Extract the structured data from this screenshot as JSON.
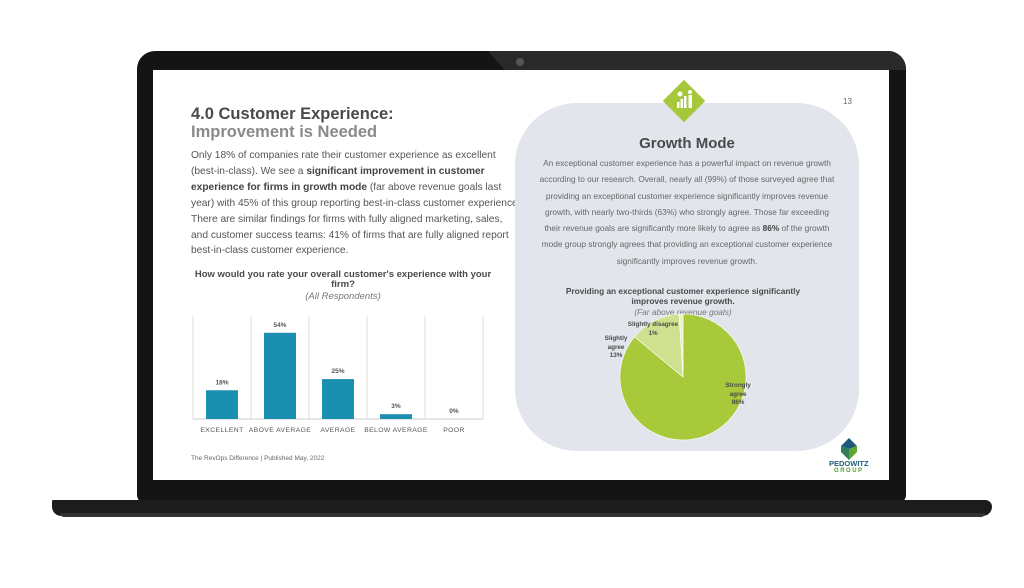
{
  "page": {
    "number": "13",
    "heading_line1": "4.0 Customer Experience:",
    "heading_line2": "Improvement is Needed",
    "body": [
      {
        "text": "Only 18% of companies rate their customer experience as excellent (best-in-class). We see a ",
        "bold": false
      },
      {
        "text": "significant improvement in customer experience for firms in growth mode",
        "bold": true
      },
      {
        "text": " (far above revenue goals last year) with 45% of this group reporting best-in-class customer experience. There are similar findings for firms with fully aligned marketing, sales, and customer success teams: 41% of firms that are fully aligned report best-in-class customer experience.",
        "bold": false
      }
    ],
    "footer": "The RevOps Difference  |  Published May, 2022"
  },
  "growth_box": {
    "icon": "growth-presenter-chart-icon",
    "title": "Growth Mode",
    "text_before": "An exceptional customer experience has a powerful impact on revenue growth according to our research. Overall, nearly all (99%) of those surveyed agree that providing an exceptional customer experience significantly improves revenue growth, with nearly two-thirds (63%) who strongly agree. Those far exceeding their revenue goals are significantly more likely to agree as ",
    "text_bold": "86%",
    "text_after": " of the growth mode group strongly agrees that providing an exceptional customer experience significantly improves revenue growth."
  },
  "logo": {
    "name": "PEDOWITZ",
    "sub": "GROUP"
  },
  "colors": {
    "bar": "#1a8fb0",
    "accent_green": "#a4c83a",
    "pie_main": "#a8c93a",
    "pie_light": "#cfe08f",
    "pie_lightest": "#eaf2c8",
    "box_bg": "#e2e5ec"
  },
  "chart_data": [
    {
      "type": "bar",
      "title": "How would you rate your overall customer's experience with your firm?",
      "subtitle": "(All Respondents)",
      "categories": [
        "EXCELLENT",
        "ABOVE AVERAGE",
        "AVERAGE",
        "BELOW AVERAGE",
        "POOR"
      ],
      "values": [
        18,
        54,
        25,
        3,
        0
      ],
      "labels": [
        "18%",
        "54%",
        "25%",
        "3%",
        "0%"
      ],
      "ylim": [
        0,
        60
      ],
      "grid": "vertical separators"
    },
    {
      "type": "pie",
      "title": "Providing an exceptional customer experience significantly improves revenue growth.",
      "subtitle": "(Far above revenue goals)",
      "slices": [
        {
          "label": "Strongly agree",
          "value": 86,
          "text": "86%"
        },
        {
          "label": "Slightly agree",
          "value": 13,
          "text": "13%"
        },
        {
          "label": "Slightly disagree",
          "value": 1,
          "text": "1%"
        }
      ]
    }
  ]
}
